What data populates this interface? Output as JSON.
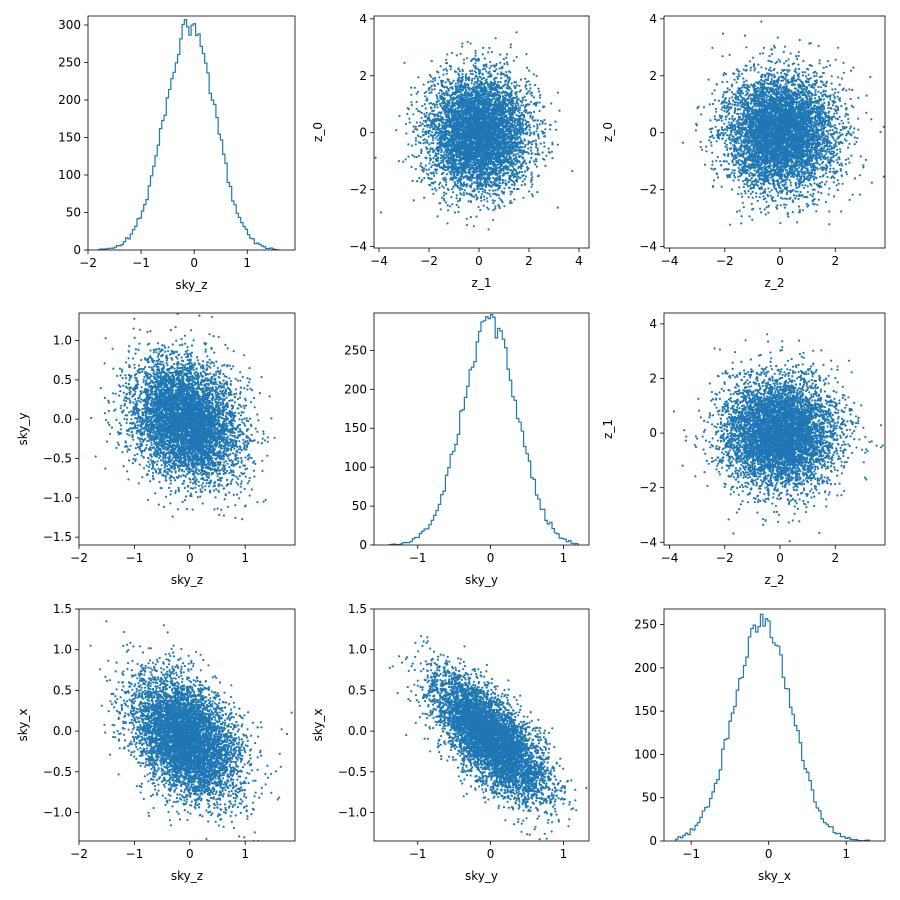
{
  "chart_data": [
    {
      "type": "histogram",
      "panel": "sky_z-hist",
      "xlabel": "sky_z",
      "ylabel": "",
      "xlim": [
        -2.0,
        1.9
      ],
      "ylim": [
        0,
        312
      ],
      "xticks": [
        -2,
        -1,
        0,
        1
      ],
      "yticks": [
        0,
        50,
        100,
        150,
        200,
        250,
        300
      ],
      "distribution": {
        "mean": -0.08,
        "sd": 0.48,
        "peak": 298,
        "xmin": -1.8,
        "xmax": 1.6,
        "bins": 80
      },
      "color": "#1f77b4"
    },
    {
      "type": "scatter",
      "panel": "z_1-vs-z_0",
      "xlabel": "z_1",
      "ylabel": "z_0",
      "xlim": [
        -4.2,
        4.4
      ],
      "ylim": [
        -4.05,
        4.1
      ],
      "xticks": [
        -4,
        -2,
        0,
        2,
        4
      ],
      "yticks": [
        -4,
        -2,
        0,
        2,
        4
      ],
      "distribution": {
        "mean_x": 0,
        "mean_y": 0,
        "sd_x": 1,
        "sd_y": 1,
        "rho": 0
      },
      "color": "#1f77b4"
    },
    {
      "type": "scatter",
      "panel": "z_2-vs-z_0",
      "xlabel": "z_2",
      "ylabel": "z_0",
      "xlim": [
        -4.2,
        3.8
      ],
      "ylim": [
        -4.05,
        4.1
      ],
      "xticks": [
        -4,
        -2,
        0,
        2
      ],
      "yticks": [
        -4,
        -2,
        0,
        2,
        4
      ],
      "distribution": {
        "mean_x": 0,
        "mean_y": 0,
        "sd_x": 1,
        "sd_y": 1,
        "rho": 0
      },
      "color": "#1f77b4"
    },
    {
      "type": "scatter",
      "panel": "sky_z-vs-sky_y",
      "xlabel": "sky_z",
      "ylabel": "sky_y",
      "xlim": [
        -2.0,
        1.9
      ],
      "ylim": [
        -1.6,
        1.35
      ],
      "xticks": [
        -2,
        -1,
        0,
        1
      ],
      "yticks": [
        -1.5,
        -1.0,
        -0.5,
        0.0,
        0.5,
        1.0
      ],
      "distribution": {
        "mean_x": -0.08,
        "mean_y": -0.02,
        "sd_x": 0.48,
        "sd_y": 0.38,
        "rho": -0.25
      },
      "color": "#1f77b4"
    },
    {
      "type": "histogram",
      "panel": "sky_y-hist",
      "xlabel": "sky_y",
      "ylabel": "",
      "xlim": [
        -1.6,
        1.35
      ],
      "ylim": [
        0,
        298
      ],
      "xticks": [
        -1,
        0,
        1
      ],
      "yticks": [
        0,
        50,
        100,
        150,
        200,
        250
      ],
      "distribution": {
        "mean": -0.01,
        "sd": 0.38,
        "peak": 285,
        "xmin": -1.4,
        "xmax": 1.2,
        "bins": 80
      },
      "color": "#1f77b4"
    },
    {
      "type": "scatter",
      "panel": "z_2-vs-z_1",
      "xlabel": "z_2",
      "ylabel": "z_1",
      "xlim": [
        -4.2,
        3.8
      ],
      "ylim": [
        -4.1,
        4.4
      ],
      "xticks": [
        -4,
        -2,
        0,
        2
      ],
      "yticks": [
        -4,
        -2,
        0,
        2,
        4
      ],
      "distribution": {
        "mean_x": 0,
        "mean_y": 0,
        "sd_x": 1,
        "sd_y": 1,
        "rho": 0
      },
      "color": "#1f77b4"
    },
    {
      "type": "scatter",
      "panel": "sky_z-vs-sky_x",
      "xlabel": "sky_z",
      "ylabel": "sky_x",
      "xlim": [
        -2.0,
        1.9
      ],
      "ylim": [
        -1.35,
        1.5
      ],
      "xticks": [
        -2,
        -1,
        0,
        1
      ],
      "yticks": [
        -1.0,
        -0.5,
        0.0,
        0.5,
        1.0,
        1.5
      ],
      "distribution": {
        "mean_x": -0.08,
        "mean_y": -0.08,
        "sd_x": 0.48,
        "sd_y": 0.37,
        "rho": -0.38
      },
      "color": "#1f77b4"
    },
    {
      "type": "scatter",
      "panel": "sky_y-vs-sky_x",
      "xlabel": "sky_y",
      "ylabel": "sky_x",
      "xlim": [
        -1.6,
        1.35
      ],
      "ylim": [
        -1.35,
        1.5
      ],
      "xticks": [
        -1,
        0,
        1
      ],
      "yticks": [
        -1.0,
        -0.5,
        0.0,
        0.5,
        1.0,
        1.5
      ],
      "distribution": {
        "mean_x": -0.01,
        "mean_y": -0.08,
        "sd_x": 0.38,
        "sd_y": 0.37,
        "rho": -0.7
      },
      "color": "#1f77b4"
    },
    {
      "type": "histogram",
      "panel": "sky_x-hist",
      "xlabel": "sky_x",
      "ylabel": "",
      "xlim": [
        -1.35,
        1.5
      ],
      "ylim": [
        0,
        268
      ],
      "xticks": [
        -1,
        0,
        1
      ],
      "yticks": [
        0,
        50,
        100,
        150,
        200,
        250
      ],
      "distribution": {
        "mean": -0.08,
        "sd": 0.37,
        "peak": 256,
        "xmin": -1.2,
        "xmax": 1.3,
        "bins": 80
      },
      "color": "#1f77b4"
    }
  ]
}
